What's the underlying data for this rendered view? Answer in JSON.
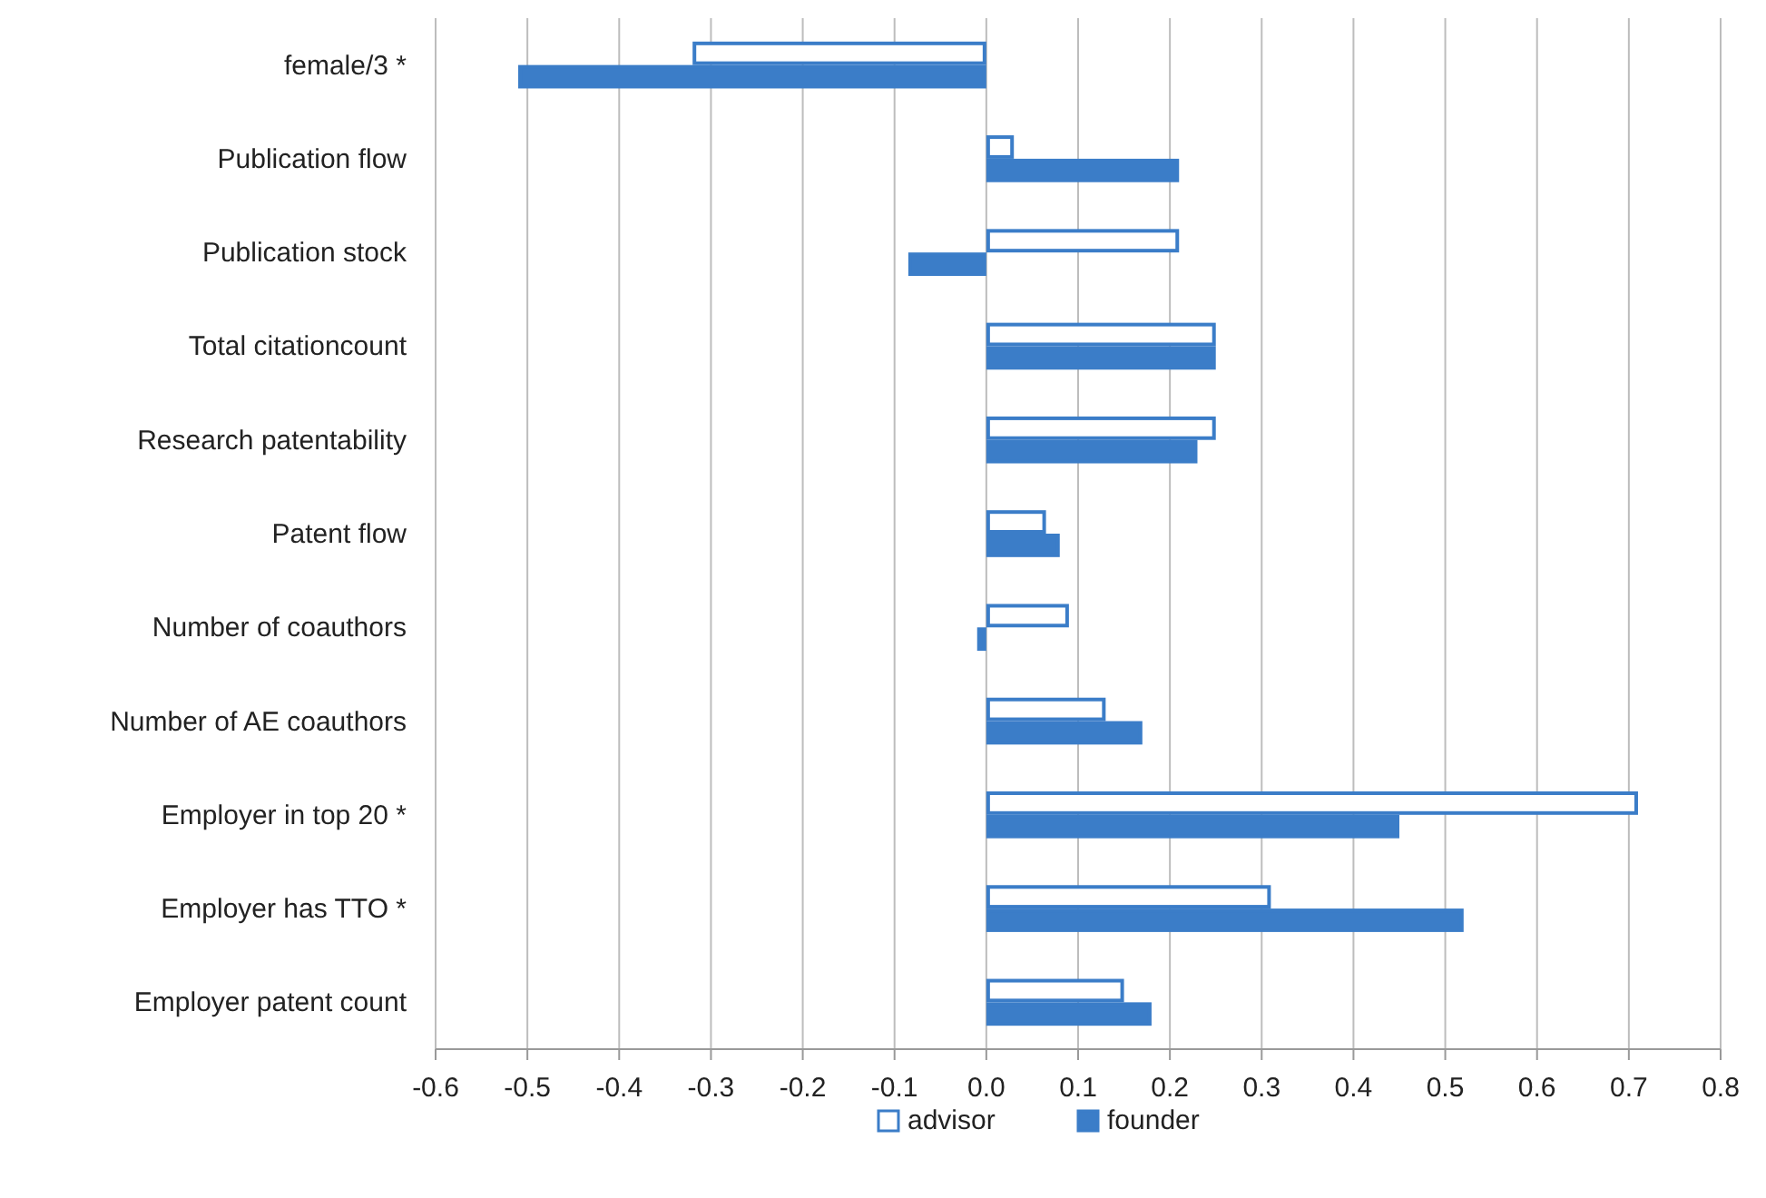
{
  "chart_data": {
    "type": "bar",
    "orientation": "horizontal",
    "categories": [
      "female/3 *",
      "Publication flow",
      "Publication stock",
      "Total citationcount",
      "Research patentability",
      "Patent flow",
      "Number of coauthors",
      "Number of AE coauthors",
      "Employer in top 20 *",
      "Employer has TTO *",
      "Employer patent count"
    ],
    "series": [
      {
        "name": "advisor",
        "color": "#ffffff",
        "values": [
          -0.32,
          0.03,
          0.21,
          0.25,
          0.25,
          0.065,
          0.09,
          0.13,
          0.71,
          0.31,
          0.15
        ]
      },
      {
        "name": "founder",
        "color": "#3b7dc8",
        "values": [
          -0.51,
          0.21,
          -0.085,
          0.25,
          0.23,
          0.08,
          -0.01,
          0.17,
          0.45,
          0.52,
          0.18
        ]
      }
    ],
    "xlim": [
      -0.6,
      0.8
    ],
    "xticks": [
      {
        "value": -0.6,
        "label": "-0.6"
      },
      {
        "value": -0.5,
        "label": "-0.5"
      },
      {
        "value": -0.4,
        "label": "-0.4"
      },
      {
        "value": -0.3,
        "label": "-0.3"
      },
      {
        "value": -0.2,
        "label": "-0.2"
      },
      {
        "value": -0.1,
        "label": "-0.1"
      },
      {
        "value": 0,
        "label": "0.0"
      },
      {
        "value": 0.1,
        "label": "0.1"
      },
      {
        "value": 0.2,
        "label": "0.2"
      },
      {
        "value": 0.3,
        "label": "0.3"
      },
      {
        "value": 0.4,
        "label": "0.4"
      },
      {
        "value": 0.5,
        "label": "0.5"
      },
      {
        "value": 0.6,
        "label": "0.6"
      },
      {
        "value": 0.7,
        "label": "0.7"
      },
      {
        "value": 0.8,
        "label": "0.8"
      }
    ],
    "grid": "x",
    "legend": "bottom"
  }
}
